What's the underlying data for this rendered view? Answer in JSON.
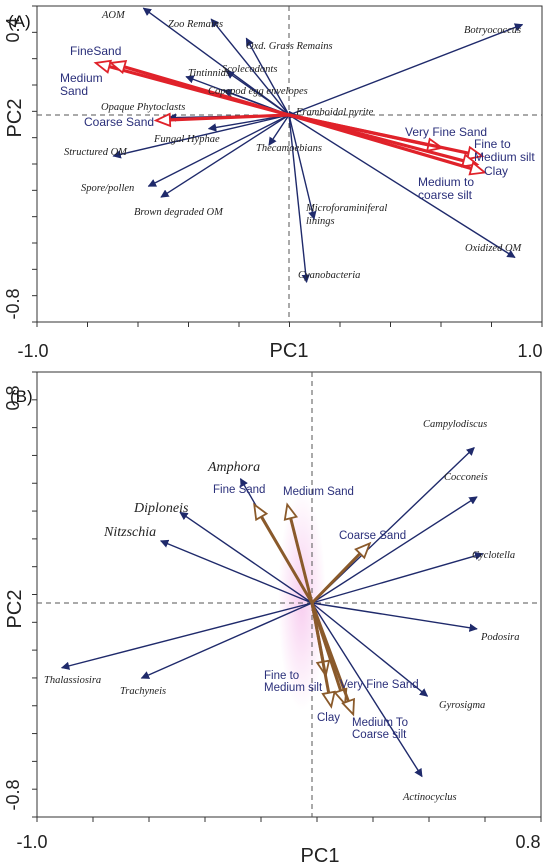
{
  "chart_data": [
    {
      "type": "biplot",
      "panel_label": "(A)",
      "xlabel": "PC1",
      "ylabel": "PC2",
      "xlim": [
        -1.0,
        1.0
      ],
      "ylim": [
        -0.8,
        0.4
      ],
      "x_tick_labels": [
        "-1.0",
        "1.0"
      ],
      "y_tick_labels": [
        "0.4",
        "-0.8"
      ],
      "species_vectors": [
        {
          "name": "AOM",
          "x": -0.58,
          "y": 0.39
        },
        {
          "name": "Zoo Remains",
          "x": -0.31,
          "y": 0.35
        },
        {
          "name": "Oxd. Grass Remains",
          "x": -0.17,
          "y": 0.28
        },
        {
          "name": "Scolecodonts",
          "x": -0.25,
          "y": 0.16
        },
        {
          "name": "Tintinnids",
          "x": -0.41,
          "y": 0.14
        },
        {
          "name": "Copepod egg envelopes",
          "x": -0.26,
          "y": 0.09
        },
        {
          "name": "Framboidal pyrite",
          "x": 0.03,
          "y": 0.0
        },
        {
          "name": "Opaque Phytoclasts",
          "x": -0.48,
          "y": -0.01
        },
        {
          "name": "Fungal Hyphae",
          "x": -0.32,
          "y": -0.05
        },
        {
          "name": "Structured OM",
          "x": -0.7,
          "y": -0.15
        },
        {
          "name": "Thecamoebians",
          "x": -0.08,
          "y": -0.11
        },
        {
          "name": "Spore/pollen",
          "x": -0.56,
          "y": -0.26
        },
        {
          "name": "Brown degraded OM",
          "x": -0.51,
          "y": -0.3
        },
        {
          "name": "Microforaminiferal linings",
          "x": 0.1,
          "y": -0.38
        },
        {
          "name": "Cyanobacteria",
          "x": 0.07,
          "y": -0.61
        },
        {
          "name": "Oxidized OM",
          "x": 0.9,
          "y": -0.52
        },
        {
          "name": "Botryococcus",
          "x": 0.93,
          "y": 0.33
        }
      ],
      "environment_vectors": [
        {
          "name": "FineSand",
          "x": -0.77,
          "y": 0.19
        },
        {
          "name": "Medium Sand",
          "x": -0.71,
          "y": 0.19
        },
        {
          "name": "Coarse Sand",
          "x": -0.53,
          "y": -0.02
        },
        {
          "name": "Very Fine Sand",
          "x": 0.61,
          "y": -0.12
        },
        {
          "name": "Fine to Medium silt",
          "x": 0.77,
          "y": -0.15
        },
        {
          "name": "Clay",
          "x": 0.75,
          "y": -0.18
        },
        {
          "name": "Medium to coarse silt",
          "x": 0.78,
          "y": -0.21
        }
      ]
    },
    {
      "type": "biplot",
      "panel_label": "(B)",
      "xlabel": "PC1",
      "ylabel": "PC2",
      "xlim": [
        -1.0,
        0.8
      ],
      "ylim": [
        -0.8,
        0.8
      ],
      "x_tick_labels": [
        "-1.0",
        "0.8"
      ],
      "y_tick_labels": [
        "0.8",
        "-0.8"
      ],
      "species_vectors": [
        {
          "name": "Campylodiscus",
          "x": 0.59,
          "y": 0.6
        },
        {
          "name": "Cocconeis",
          "x": 0.6,
          "y": 0.41
        },
        {
          "name": "Cyclotella",
          "x": 0.62,
          "y": 0.19
        },
        {
          "name": "Podosira",
          "x": 0.6,
          "y": -0.1
        },
        {
          "name": "Gyrosigma",
          "x": 0.42,
          "y": -0.36
        },
        {
          "name": "Actinocyclus",
          "x": 0.4,
          "y": -0.67
        },
        {
          "name": "Amphora",
          "x": -0.26,
          "y": 0.48
        },
        {
          "name": "Diploneis",
          "x": -0.48,
          "y": 0.35
        },
        {
          "name": "Nitzschia",
          "x": -0.55,
          "y": 0.24
        },
        {
          "name": "Thalassiosira",
          "x": -0.91,
          "y": -0.25
        },
        {
          "name": "Trachyneis",
          "x": -0.62,
          "y": -0.29
        }
      ],
      "environment_vectors": [
        {
          "name": "Fine Sand",
          "x": -0.21,
          "y": 0.38
        },
        {
          "name": "Medium Sand",
          "x": -0.09,
          "y": 0.38
        },
        {
          "name": "Coarse Sand",
          "x": 0.21,
          "y": 0.23
        },
        {
          "name": "Fine to Medium silt",
          "x": 0.05,
          "y": -0.28
        },
        {
          "name": "Very Fine Sand",
          "x": 0.12,
          "y": -0.39
        },
        {
          "name": "Clay",
          "x": 0.07,
          "y": -0.4
        },
        {
          "name": "Medium To Coarse silt",
          "x": 0.15,
          "y": -0.43
        }
      ]
    }
  ]
}
